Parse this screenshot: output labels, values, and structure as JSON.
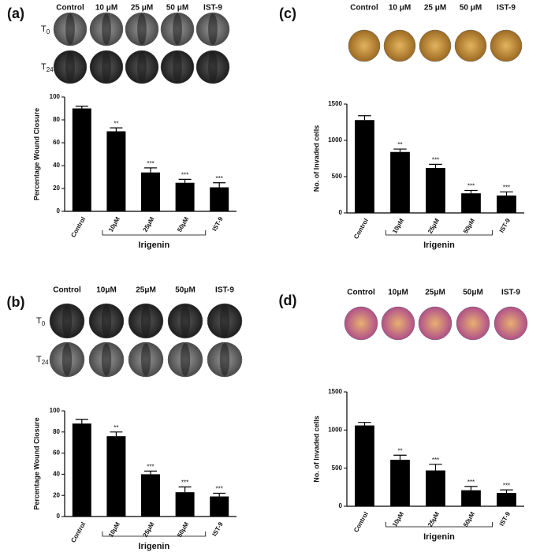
{
  "chart_data": [
    {
      "type": "bar",
      "panel_label": "(a)",
      "image_labels": [
        "Control",
        "10 μM",
        "25 μM",
        "50 μM",
        "IST-9"
      ],
      "row_labels": [
        {
          "main": "T",
          "sub": "0"
        },
        {
          "main": "T",
          "sub": "24"
        }
      ],
      "ylabel": "Percentage Wound Closure",
      "categories": [
        "Control",
        "10μM",
        "25μM",
        "50μM",
        "IST-9"
      ],
      "values": [
        90,
        70,
        34,
        25,
        21
      ],
      "errors": [
        2,
        3,
        4,
        3,
        4
      ],
      "annotations": [
        null,
        "**",
        "***",
        "***",
        "***"
      ],
      "group_label": "Irigenin",
      "ylim": [
        0,
        100
      ],
      "yticks": [
        0,
        20,
        40,
        60,
        80,
        100
      ],
      "color": "#000000"
    },
    {
      "type": "bar",
      "panel_label": "(b)",
      "image_labels": [
        "Control",
        "10μM",
        "25μM",
        "50μM",
        "IST-9"
      ],
      "row_labels": [
        {
          "main": "T",
          "sub": "0"
        },
        {
          "main": "T",
          "sub": "24"
        }
      ],
      "ylabel": "Percentage Wound Closure",
      "categories": [
        "Control",
        "10μM",
        "25μM",
        "50μM",
        "IST-9"
      ],
      "values": [
        88,
        76,
        40,
        23,
        19
      ],
      "errors": [
        4,
        4,
        3,
        5,
        3
      ],
      "annotations": [
        null,
        "**",
        "***",
        "***",
        "***"
      ],
      "group_label": "Irigenin",
      "ylim": [
        0,
        100
      ],
      "yticks": [
        0,
        20,
        40,
        60,
        80,
        100
      ],
      "color": "#000000"
    },
    {
      "type": "bar",
      "panel_label": "(c)",
      "image_labels": [
        "Control",
        "10 μM",
        "25 μM",
        "50 μM",
        "IST-9"
      ],
      "ylabel": "No. of Invaded cells",
      "categories": [
        "Control",
        "10μM",
        "25μM",
        "50μM",
        "IST-9"
      ],
      "values": [
        1280,
        840,
        620,
        270,
        240
      ],
      "errors": [
        60,
        40,
        50,
        40,
        50
      ],
      "annotations": [
        null,
        "**",
        "***",
        "***",
        "***"
      ],
      "group_label": "Irigenin",
      "ylim": [
        0,
        1500
      ],
      "yticks": [
        0,
        500,
        1000,
        1500
      ],
      "color": "#000000"
    },
    {
      "type": "bar",
      "panel_label": "(d)",
      "image_labels": [
        "Control",
        "10μM",
        "25μM",
        "50μM",
        "IST-9"
      ],
      "ylabel": "No. of Invaded cells",
      "categories": [
        "Control",
        "10μM",
        "25μM",
        "50μM",
        "IST-9"
      ],
      "values": [
        1060,
        610,
        470,
        210,
        175
      ],
      "errors": [
        40,
        60,
        80,
        50,
        40
      ],
      "annotations": [
        null,
        "**",
        "***",
        "***",
        "***"
      ],
      "group_label": "Irigenin",
      "ylim": [
        0,
        1500
      ],
      "yticks": [
        0,
        500,
        1000,
        1500
      ],
      "color": "#000000"
    }
  ]
}
